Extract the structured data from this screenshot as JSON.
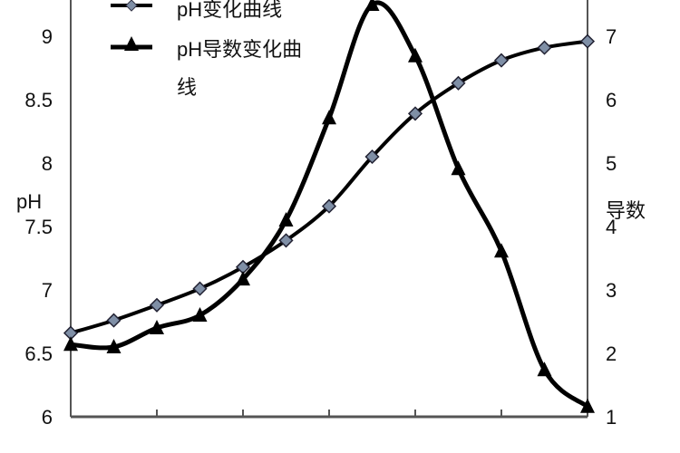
{
  "chart_data": {
    "type": "line",
    "title": "",
    "xlabel": "",
    "ylabel": "pH",
    "y2label": "导数",
    "ylim": [
      6,
      9
    ],
    "y2lim": [
      1,
      7
    ],
    "yticks": [
      "6",
      "6.5",
      "7",
      "7.5",
      "8",
      "8.5",
      "9"
    ],
    "y2ticks": [
      "1",
      "2",
      "3",
      "4",
      "5",
      "6",
      "7"
    ],
    "x": [
      0,
      1,
      2,
      3,
      4,
      5,
      6,
      7,
      8,
      9,
      10,
      11,
      12
    ],
    "grid": false,
    "legend": "top-left",
    "series": [
      {
        "name": "pH变化曲线",
        "axis": "left",
        "marker": "diamond",
        "color": "#000000",
        "marker_color": "#7f8fa6",
        "values": [
          6.66,
          6.76,
          6.88,
          7.01,
          7.18,
          7.39,
          7.66,
          8.05,
          8.39,
          8.63,
          8.81,
          8.91,
          8.96
        ]
      },
      {
        "name": "pH导数变化曲线",
        "axis": "right",
        "marker": "triangle",
        "color": "#000000",
        "values": [
          2.14,
          2.1,
          2.4,
          2.6,
          3.17,
          4.1,
          5.71,
          7.5,
          6.69,
          4.91,
          3.61,
          1.74,
          1.16
        ]
      }
    ]
  }
}
